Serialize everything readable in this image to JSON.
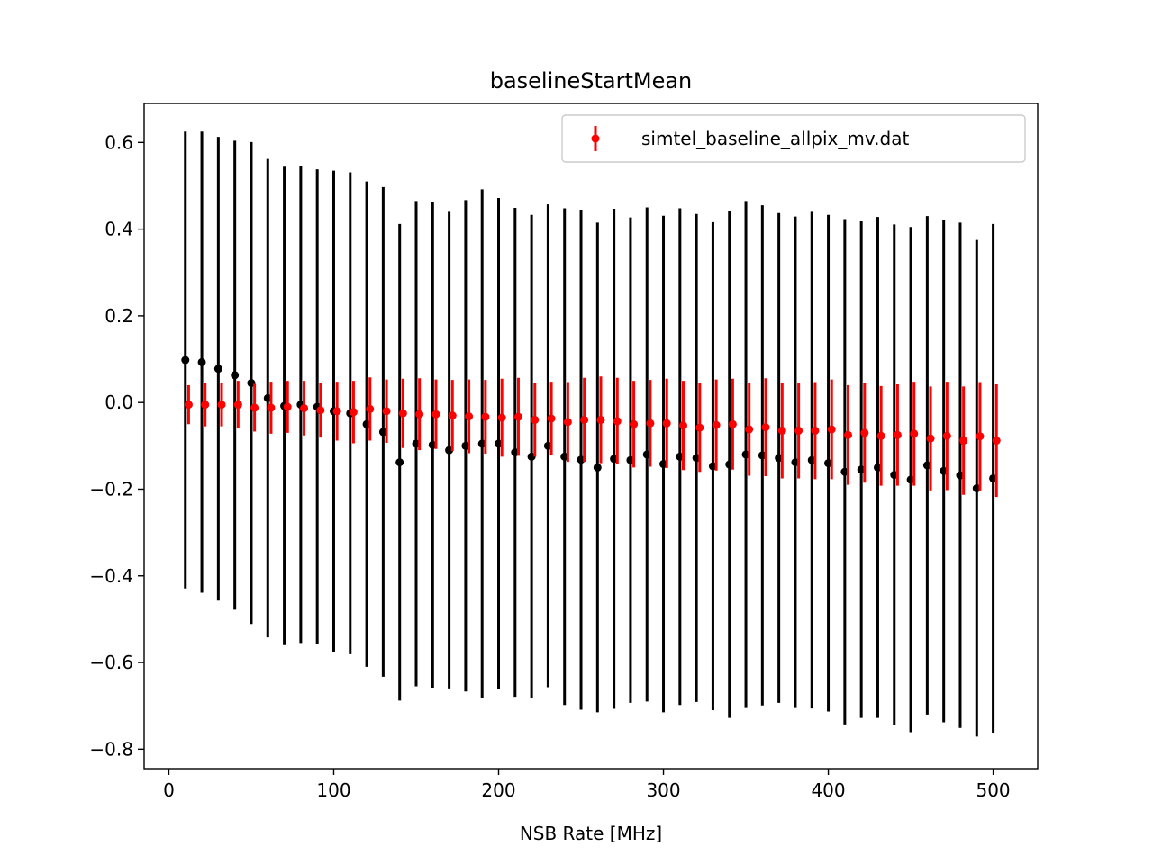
{
  "chart_data": {
    "type": "scatter",
    "title": "baselineStartMean",
    "xlabel": "NSB Rate [MHz]",
    "ylabel": "",
    "xlim": [
      -15,
      527
    ],
    "ylim": [
      -0.845,
      0.69
    ],
    "xticks": [
      0,
      100,
      200,
      300,
      400,
      500
    ],
    "xtick_labels": [
      "0",
      "100",
      "200",
      "300",
      "400",
      "500"
    ],
    "yticks": [
      0.6,
      0.4,
      0.2,
      0.0,
      -0.2,
      -0.4,
      -0.6,
      -0.8
    ],
    "ytick_labels": [
      "0.6",
      "0.4",
      "0.2",
      "0.0",
      "−0.2",
      "−0.4",
      "−0.6",
      "−0.8"
    ],
    "grid": false,
    "legend_position": "top-right",
    "legend_label": "simtel_baseline_allpix_mv.dat",
    "series": [
      {
        "color": "#000000",
        "x": [
          10,
          20,
          30,
          40,
          50,
          60,
          70,
          80,
          90,
          100,
          110,
          120,
          130,
          140,
          150,
          160,
          170,
          180,
          190,
          200,
          210,
          220,
          230,
          240,
          250,
          260,
          270,
          280,
          290,
          300,
          310,
          320,
          330,
          340,
          350,
          360,
          370,
          380,
          390,
          400,
          410,
          420,
          430,
          440,
          450,
          460,
          470,
          480,
          490,
          500
        ],
        "y": [
          0.098,
          0.093,
          0.078,
          0.063,
          0.045,
          0.01,
          -0.008,
          -0.005,
          -0.01,
          -0.02,
          -0.025,
          -0.05,
          -0.068,
          -0.138,
          -0.095,
          -0.098,
          -0.11,
          -0.1,
          -0.095,
          -0.095,
          -0.115,
          -0.125,
          -0.1,
          -0.125,
          -0.132,
          -0.15,
          -0.13,
          -0.133,
          -0.12,
          -0.142,
          -0.125,
          -0.128,
          -0.147,
          -0.143,
          -0.12,
          -0.122,
          -0.128,
          -0.138,
          -0.133,
          -0.14,
          -0.16,
          -0.155,
          -0.15,
          -0.167,
          -0.178,
          -0.145,
          -0.158,
          -0.168,
          -0.198,
          -0.175
        ],
        "yerr": [
          0.527,
          0.532,
          0.535,
          0.541,
          0.556,
          0.552,
          0.552,
          0.55,
          0.548,
          0.555,
          0.556,
          0.56,
          0.565,
          0.55,
          0.56,
          0.56,
          0.55,
          0.567,
          0.587,
          0.567,
          0.564,
          0.558,
          0.557,
          0.573,
          0.577,
          0.565,
          0.577,
          0.56,
          0.57,
          0.573,
          0.573,
          0.563,
          0.563,
          0.585,
          0.585,
          0.577,
          0.565,
          0.567,
          0.573,
          0.573,
          0.583,
          0.573,
          0.578,
          0.578,
          0.583,
          0.575,
          0.58,
          0.583,
          0.573,
          0.587
        ]
      },
      {
        "name": "simtel_baseline_allpix_mv.dat",
        "color": "#ff0000",
        "x": [
          12,
          22,
          32,
          42,
          52,
          62,
          72,
          82,
          92,
          102,
          112,
          122,
          132,
          142,
          152,
          162,
          172,
          182,
          192,
          202,
          212,
          222,
          232,
          242,
          252,
          262,
          272,
          282,
          292,
          302,
          312,
          322,
          332,
          342,
          352,
          362,
          372,
          382,
          392,
          402,
          412,
          422,
          432,
          442,
          452,
          462,
          472,
          482,
          492,
          502
        ],
        "y": [
          -0.005,
          -0.005,
          -0.005,
          -0.005,
          -0.012,
          -0.012,
          -0.01,
          -0.013,
          -0.018,
          -0.02,
          -0.022,
          -0.015,
          -0.02,
          -0.025,
          -0.027,
          -0.027,
          -0.03,
          -0.032,
          -0.033,
          -0.035,
          -0.033,
          -0.04,
          -0.037,
          -0.045,
          -0.04,
          -0.04,
          -0.043,
          -0.05,
          -0.048,
          -0.048,
          -0.053,
          -0.058,
          -0.052,
          -0.05,
          -0.062,
          -0.057,
          -0.065,
          -0.065,
          -0.065,
          -0.062,
          -0.075,
          -0.07,
          -0.077,
          -0.075,
          -0.072,
          -0.083,
          -0.077,
          -0.088,
          -0.078,
          -0.088
        ],
        "yerr": [
          0.045,
          0.05,
          0.05,
          0.055,
          0.055,
          0.06,
          0.06,
          0.063,
          0.063,
          0.068,
          0.072,
          0.073,
          0.073,
          0.08,
          0.083,
          0.08,
          0.082,
          0.085,
          0.085,
          0.09,
          0.09,
          0.085,
          0.085,
          0.092,
          0.097,
          0.1,
          0.1,
          0.1,
          0.1,
          0.103,
          0.103,
          0.102,
          0.105,
          0.105,
          0.107,
          0.113,
          0.11,
          0.11,
          0.112,
          0.115,
          0.115,
          0.115,
          0.115,
          0.117,
          0.12,
          0.12,
          0.125,
          0.125,
          0.125,
          0.13
        ]
      }
    ]
  }
}
